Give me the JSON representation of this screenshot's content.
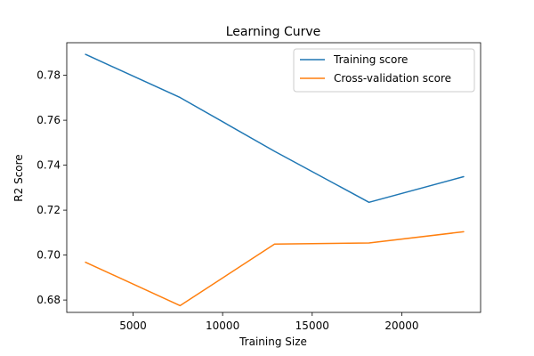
{
  "chart_data": {
    "type": "line",
    "title": "Learning Curve",
    "xlabel": "Training Size",
    "ylabel": "R2 Score",
    "xlim": [
      1300,
      24400
    ],
    "ylim": [
      0.6745,
      0.7945
    ],
    "xticks": [
      5000,
      10000,
      15000,
      20000
    ],
    "yticks": [
      0.68,
      0.7,
      0.72,
      0.74,
      0.76,
      0.78
    ],
    "grid": false,
    "legend_position": "top-right",
    "series": [
      {
        "name": "Training score",
        "color": "#1f77b4",
        "x": [
          2350,
          7630,
          12900,
          18170,
          23450
        ],
        "y": [
          0.7893,
          0.7701,
          0.7462,
          0.7235,
          0.7349
        ]
      },
      {
        "name": "Cross-validation score",
        "color": "#ff7f0e",
        "x": [
          2350,
          7630,
          12900,
          18170,
          23450
        ],
        "y": [
          0.6968,
          0.6775,
          0.7049,
          0.7054,
          0.7104
        ]
      }
    ]
  }
}
